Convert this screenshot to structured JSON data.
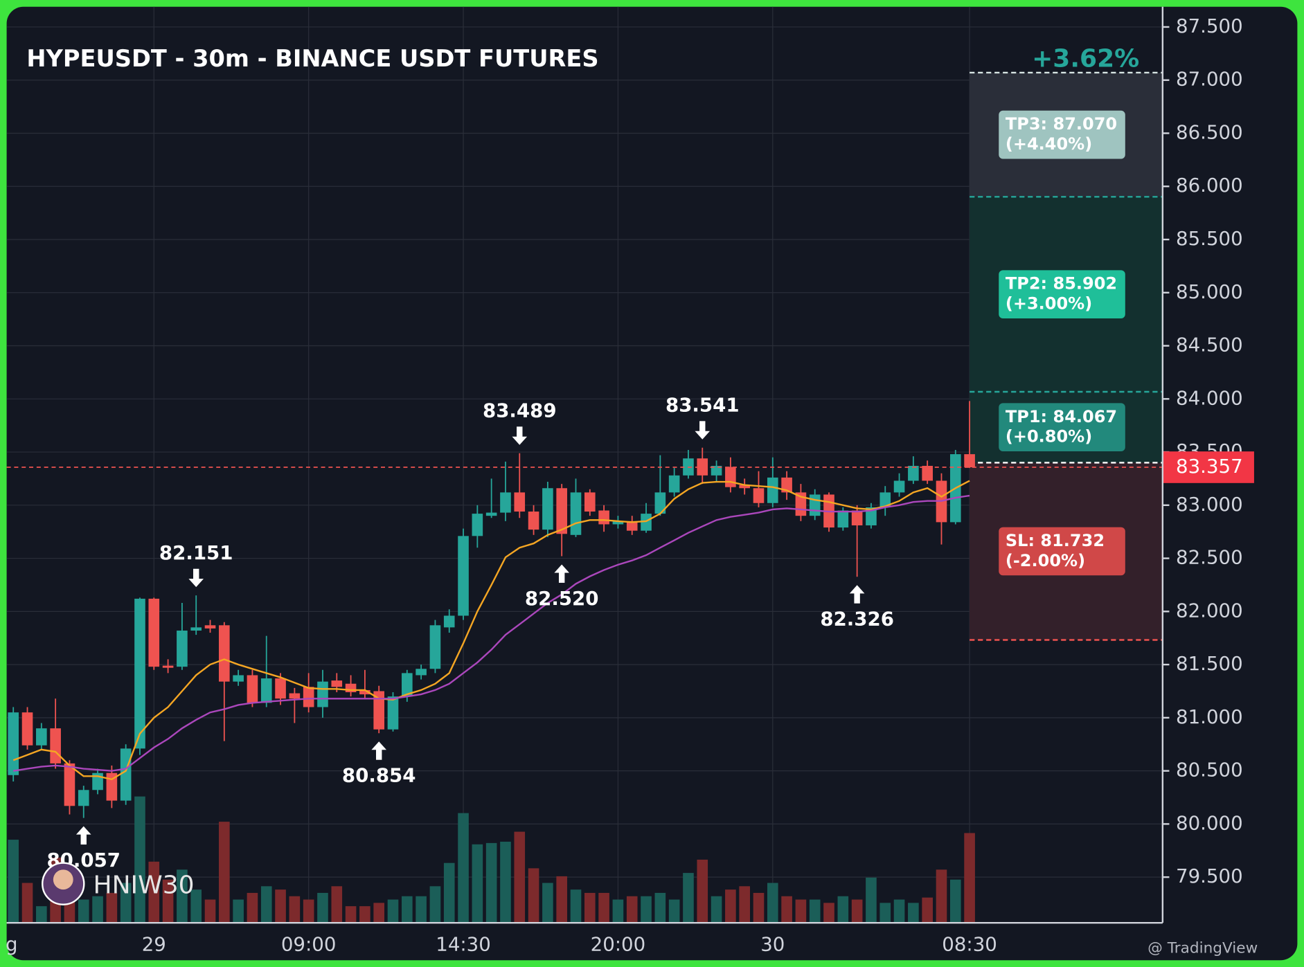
{
  "chart_data": {
    "type": "candlestick",
    "title": "HYPEUSDT - 30m - BINANCE USDT FUTURES",
    "categories": [
      "g",
      null,
      null,
      null,
      null,
      null,
      null,
      null,
      null,
      null,
      "29",
      null,
      null,
      null,
      null,
      null,
      null,
      null,
      null,
      null,
      null,
      "09:00",
      null,
      null,
      null,
      null,
      null,
      null,
      null,
      null,
      null,
      null,
      "14:30",
      null,
      null,
      null,
      null,
      null,
      null,
      null,
      null,
      null,
      null,
      "20:00",
      null,
      null,
      null,
      null,
      null,
      null,
      null,
      null,
      null,
      null,
      "30",
      null,
      null,
      null,
      null,
      null,
      null,
      null,
      null,
      null,
      null,
      null,
      null,
      null,
      "08:30"
    ],
    "open": [
      80.46,
      81.05,
      80.74,
      80.9,
      80.57,
      80.17,
      80.32,
      80.48,
      80.22,
      80.71,
      82.12,
      81.49,
      81.48,
      81.82,
      81.87,
      81.87,
      81.34,
      81.4,
      81.14,
      81.37,
      81.23,
      81.29,
      81.1,
      81.35,
      81.32,
      81.26,
      81.25,
      80.89,
      81.2,
      81.4,
      81.46,
      81.85,
      81.96,
      82.71,
      82.9,
      82.93,
      83.12,
      82.94,
      82.77,
      83.16,
      82.72,
      83.12,
      82.95,
      82.82,
      82.85,
      82.76,
      82.92,
      83.12,
      83.28,
      83.44,
      83.28,
      83.36,
      83.19,
      83.16,
      83.02,
      83.26,
      83.12,
      82.9,
      83.1,
      82.79,
      82.95,
      82.81,
      82.98,
      83.12,
      83.23,
      83.37,
      83.23,
      82.84,
      83.48
    ],
    "high": [
      81.1,
      81.1,
      80.95,
      81.18,
      80.6,
      80.36,
      80.52,
      80.55,
      80.75,
      82.13,
      82.13,
      81.55,
      82.08,
      82.151,
      81.92,
      81.9,
      81.45,
      81.45,
      81.77,
      81.42,
      81.28,
      81.42,
      81.45,
      81.42,
      81.4,
      81.45,
      81.3,
      81.24,
      81.45,
      81.5,
      81.92,
      82.02,
      82.78,
      83.0,
      83.25,
      83.41,
      83.489,
      83.0,
      83.22,
      83.2,
      83.25,
      83.15,
      83.0,
      82.9,
      82.9,
      83.02,
      83.47,
      83.35,
      83.52,
      83.541,
      83.42,
      83.45,
      83.25,
      83.32,
      83.45,
      83.32,
      83.2,
      83.15,
      83.12,
      82.98,
      83.0,
      83.02,
      83.18,
      83.3,
      83.46,
      83.42,
      83.3,
      83.52,
      83.98
    ],
    "low": [
      80.4,
      80.7,
      80.7,
      80.52,
      80.09,
      80.057,
      80.28,
      80.15,
      80.18,
      80.65,
      81.45,
      81.42,
      81.45,
      81.78,
      81.8,
      80.78,
      81.3,
      81.1,
      81.1,
      81.12,
      80.95,
      81.05,
      81.0,
      81.24,
      81.2,
      81.18,
      80.854,
      80.87,
      81.15,
      81.36,
      81.42,
      81.8,
      81.92,
      82.6,
      82.88,
      82.85,
      82.88,
      82.72,
      82.7,
      82.52,
      82.7,
      82.9,
      82.75,
      82.78,
      82.72,
      82.74,
      82.9,
      83.08,
      83.25,
      83.2,
      83.22,
      83.12,
      83.1,
      82.98,
      82.98,
      83.05,
      82.85,
      82.86,
      82.75,
      82.76,
      82.326,
      82.78,
      82.9,
      83.08,
      83.2,
      83.2,
      82.63,
      82.82,
      83.35
    ],
    "close": [
      81.05,
      80.74,
      80.9,
      80.57,
      80.17,
      80.32,
      80.48,
      80.22,
      80.71,
      82.12,
      81.48,
      81.47,
      81.82,
      81.85,
      81.84,
      81.34,
      81.4,
      81.14,
      81.37,
      81.18,
      81.18,
      81.1,
      81.34,
      81.29,
      81.24,
      81.22,
      80.89,
      81.2,
      81.42,
      81.46,
      81.87,
      81.96,
      82.71,
      82.92,
      82.93,
      83.12,
      82.94,
      82.77,
      83.16,
      82.73,
      83.12,
      82.94,
      82.82,
      82.85,
      82.76,
      82.92,
      83.12,
      83.28,
      83.44,
      83.28,
      83.37,
      83.17,
      83.16,
      83.02,
      83.26,
      83.12,
      82.9,
      83.1,
      82.79,
      82.95,
      82.81,
      82.98,
      83.12,
      83.23,
      83.37,
      83.23,
      82.84,
      83.48,
      83.357
    ],
    "volume": [
      125,
      60,
      25,
      98,
      55,
      35,
      40,
      45,
      60,
      190,
      92,
      65,
      80,
      50,
      35,
      152,
      35,
      45,
      55,
      50,
      40,
      35,
      45,
      55,
      25,
      25,
      30,
      35,
      40,
      40,
      55,
      90,
      165,
      118,
      120,
      122,
      137,
      82,
      60,
      70,
      50,
      45,
      45,
      35,
      40,
      40,
      45,
      35,
      75,
      95,
      40,
      50,
      55,
      45,
      60,
      40,
      35,
      35,
      30,
      40,
      35,
      68,
      30,
      35,
      30,
      38,
      80,
      65,
      135
    ],
    "up_color": "#26a69a",
    "down_color": "#ef5350",
    "overlays": [
      {
        "color": "#f5a623",
        "values": [
          80.6,
          80.65,
          80.7,
          80.68,
          80.55,
          80.45,
          80.45,
          80.42,
          80.5,
          80.85,
          81.0,
          81.1,
          81.25,
          81.4,
          81.5,
          81.55,
          81.5,
          81.46,
          81.42,
          81.38,
          81.33,
          81.28,
          81.27,
          81.27,
          81.26,
          81.26,
          81.18,
          81.17,
          81.22,
          81.26,
          81.32,
          81.42,
          81.7,
          82.0,
          82.25,
          82.51,
          82.6,
          82.64,
          82.72,
          82.77,
          82.83,
          82.86,
          82.86,
          82.85,
          82.84,
          82.85,
          82.92,
          83.06,
          83.15,
          83.21,
          83.22,
          83.22,
          83.19,
          83.18,
          83.17,
          83.14,
          83.08,
          83.05,
          83.03,
          83.0,
          82.97,
          82.96,
          82.99,
          83.04,
          83.12,
          83.16,
          83.08,
          83.16,
          83.23
        ]
      },
      {
        "color": "#ab47bc",
        "values": [
          80.5,
          80.52,
          80.54,
          80.55,
          80.54,
          80.52,
          80.51,
          80.5,
          80.52,
          80.62,
          80.72,
          80.8,
          80.9,
          80.98,
          81.05,
          81.08,
          81.12,
          81.14,
          81.15,
          81.16,
          81.17,
          81.18,
          81.18,
          81.18,
          81.18,
          81.18,
          81.18,
          81.18,
          81.2,
          81.22,
          81.26,
          81.32,
          81.42,
          81.52,
          81.64,
          81.78,
          81.88,
          81.98,
          82.08,
          82.16,
          82.26,
          82.33,
          82.39,
          82.44,
          82.48,
          82.53,
          82.6,
          82.67,
          82.74,
          82.8,
          82.86,
          82.89,
          82.91,
          82.93,
          82.96,
          82.97,
          82.96,
          82.95,
          82.94,
          82.94,
          82.94,
          82.95,
          82.98,
          83.0,
          83.03,
          83.04,
          83.04,
          83.07,
          83.09
        ]
      }
    ],
    "ylim": [
      79.07,
      87.69
    ],
    "yticks": [
      {
        "value": 79.5,
        "label": "79.500"
      },
      {
        "value": 80,
        "label": "80.000"
      },
      {
        "value": 80.5,
        "label": "80.500"
      },
      {
        "value": 81,
        "label": "81.000"
      },
      {
        "value": 81.5,
        "label": "81.500"
      },
      {
        "value": 82,
        "label": "82.000"
      },
      {
        "value": 82.5,
        "label": "82.500"
      },
      {
        "value": 83,
        "label": "83.000"
      },
      {
        "value": 83.5,
        "label": "83.500"
      },
      {
        "value": 84,
        "label": "84.000"
      },
      {
        "value": 84.5,
        "label": "84.500"
      },
      {
        "value": 85,
        "label": "85.000"
      },
      {
        "value": 85.5,
        "label": "85.500"
      },
      {
        "value": 86,
        "label": "86.000"
      },
      {
        "value": 86.5,
        "label": "86.500"
      },
      {
        "value": 87,
        "label": "87.000"
      },
      {
        "value": 87.5,
        "label": "87.500"
      }
    ],
    "grid": true,
    "last_price": {
      "value": 83.357,
      "label": "83.357"
    },
    "annotations": [
      {
        "label": "80.057",
        "value": 80.057,
        "index": 5,
        "side": "below"
      },
      {
        "label": "82.151",
        "value": 82.151,
        "index": 13,
        "side": "above"
      },
      {
        "label": "80.854",
        "value": 80.854,
        "index": 26,
        "side": "below"
      },
      {
        "label": "83.489",
        "value": 83.489,
        "index": 36,
        "side": "above"
      },
      {
        "label": "82.520",
        "value": 82.52,
        "index": 39,
        "side": "below"
      },
      {
        "label": "83.541",
        "value": 83.541,
        "index": 49,
        "side": "above"
      },
      {
        "label": "82.326",
        "value": 82.326,
        "index": 60,
        "side": "below"
      }
    ],
    "position": {
      "change": "+3.62%",
      "entry": 83.4,
      "targets": [
        {
          "value": 87.07,
          "label": "TP3: 87.070",
          "pct": "(+4.40%)",
          "color": "#9fc4c0"
        },
        {
          "value": 85.902,
          "label": "TP2: 85.902",
          "pct": "(+3.00%)",
          "color": "#1fbf99"
        },
        {
          "value": 84.067,
          "label": "TP1: 84.067",
          "pct": "(+0.80%)",
          "color": "#22897c"
        }
      ],
      "stop": {
        "value": 81.732,
        "label": "SL: 81.732",
        "pct": "(-2.00%)",
        "color": "#d04848"
      }
    },
    "watermark": "HNIW30",
    "credit": "@ TradingView"
  }
}
